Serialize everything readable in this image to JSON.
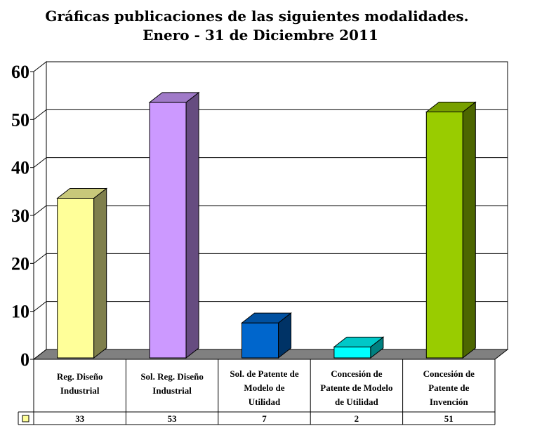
{
  "chart_data": {
    "type": "bar",
    "title": "Gráficas publicaciones de las siguientes modalidades.",
    "subtitle": "Enero - 31 de Diciembre 2011",
    "xlabel": "",
    "ylabel": "",
    "ylim": [
      0,
      60
    ],
    "yticks": [
      0,
      10,
      20,
      30,
      40,
      50,
      60
    ],
    "grid": true,
    "three_d": true,
    "categories": [
      [
        "Reg. Diseño",
        "Industrial"
      ],
      [
        "Sol. Reg. Diseño",
        "Industrial"
      ],
      [
        "Sol. de Patente de",
        "Modelo de",
        "Utilidad"
      ],
      [
        "Concesión de",
        "Patente de Modelo",
        "de Utilidad"
      ],
      [
        "Concesión de",
        "Patente de",
        "Invención"
      ]
    ],
    "values": [
      33,
      53,
      7,
      2,
      51
    ],
    "bar_colors": [
      {
        "front": "#ffff99",
        "side": "#7f7f4c",
        "top": "#c8c87a"
      },
      {
        "front": "#cc99ff",
        "side": "#664c80",
        "top": "#a07ac8"
      },
      {
        "front": "#0066cc",
        "side": "#003366",
        "top": "#0050a0"
      },
      {
        "front": "#00ffff",
        "side": "#008080",
        "top": "#00c8c8"
      },
      {
        "front": "#99cc00",
        "side": "#4c6600",
        "top": "#78a000"
      }
    ],
    "legend_swatch_color": "#ffff99"
  }
}
